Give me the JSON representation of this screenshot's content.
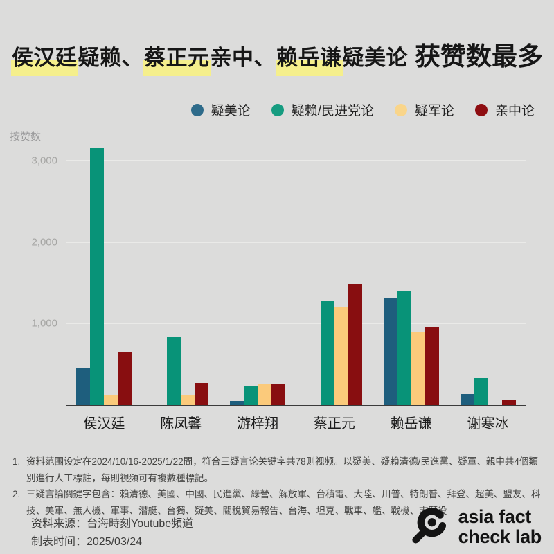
{
  "page": {
    "background": "#dcdcdb",
    "highlight_color": "#f5ef8c"
  },
  "title": {
    "full": "侯汉廷疑赖、蔡正元亲中、赖岳谦疑美论 获赞数最多",
    "segments": [
      {
        "text": "侯汉廷",
        "highlight": true,
        "emphasis": false
      },
      {
        "text": "疑赖、",
        "highlight": false,
        "emphasis": false
      },
      {
        "text": "蔡正元",
        "highlight": true,
        "emphasis": false
      },
      {
        "text": "亲中、",
        "highlight": false,
        "emphasis": false
      },
      {
        "text": "赖岳谦",
        "highlight": true,
        "emphasis": false
      },
      {
        "text": "疑美论",
        "highlight": false,
        "emphasis": false
      },
      {
        "text": "获赞数最多",
        "highlight": false,
        "emphasis": true
      }
    ]
  },
  "chart_data": {
    "type": "bar",
    "title": "侯汉廷疑赖、蔡正元亲中、赖岳谦疑美论 获赞数最多",
    "ylabel": "按赞数",
    "xlabel": "",
    "ylim": [
      0,
      3400
    ],
    "grid": true,
    "legend_position": "top-right",
    "yticks": [
      {
        "value": 1000,
        "label": "1,000"
      },
      {
        "value": 2000,
        "label": "2,000"
      },
      {
        "value": 3000,
        "label": "3,000"
      }
    ],
    "categories": [
      "侯汉廷",
      "陈凤馨",
      "游梓翔",
      "蔡正元",
      "赖岳谦",
      "谢寒冰"
    ],
    "series": [
      {
        "key": "doubt-us",
        "name": "疑美论",
        "color": "#1e5e7d",
        "dot_color": "#2e6b8a",
        "values": [
          460,
          0,
          50,
          0,
          1320,
          140
        ]
      },
      {
        "key": "doubt-lai-dpp",
        "name": "疑赖/民进党论",
        "color": "#089378",
        "dot_color": "#169c80",
        "values": [
          3160,
          840,
          230,
          1280,
          1400,
          330
        ]
      },
      {
        "key": "doubt-military",
        "name": "疑军论",
        "color": "#fbca7b",
        "dot_color": "#f9d58a",
        "values": [
          130,
          130,
          265,
          1200,
          890,
          0
        ]
      },
      {
        "key": "pro-china",
        "name": "亲中论",
        "color": "#880e10",
        "dot_color": "#8e0d11",
        "values": [
          650,
          270,
          260,
          1490,
          960,
          70
        ]
      }
    ]
  },
  "footnotes": [
    {
      "marker": "1.",
      "text": "资料范围设定在2024/10/16-2025/1/22間，符合三疑言论关键字共78则视频。以疑美、疑賴清德/民進黨、疑軍、親中共4個類別進行人工標註，每則視頻可有複數種標記。"
    },
    {
      "marker": "2.",
      "text": "三疑言論關鍵字包含：賴清德、美國、中國、民進黨、綠營、解放軍、台積電、大陸、川普、特朗普、拜登、超美、盟友、科技、美軍、無人機、軍事、潜艇、台獨、疑美、關稅貿易報告、台海、坦克、戰車、艦、戰機、志願役"
    }
  ],
  "source": {
    "line1": "资料来源：台海時刻Youtube頻道",
    "line2": "制表时间：2025/03/24"
  },
  "logo": {
    "line1": "asia fact",
    "line2": "check lab"
  }
}
